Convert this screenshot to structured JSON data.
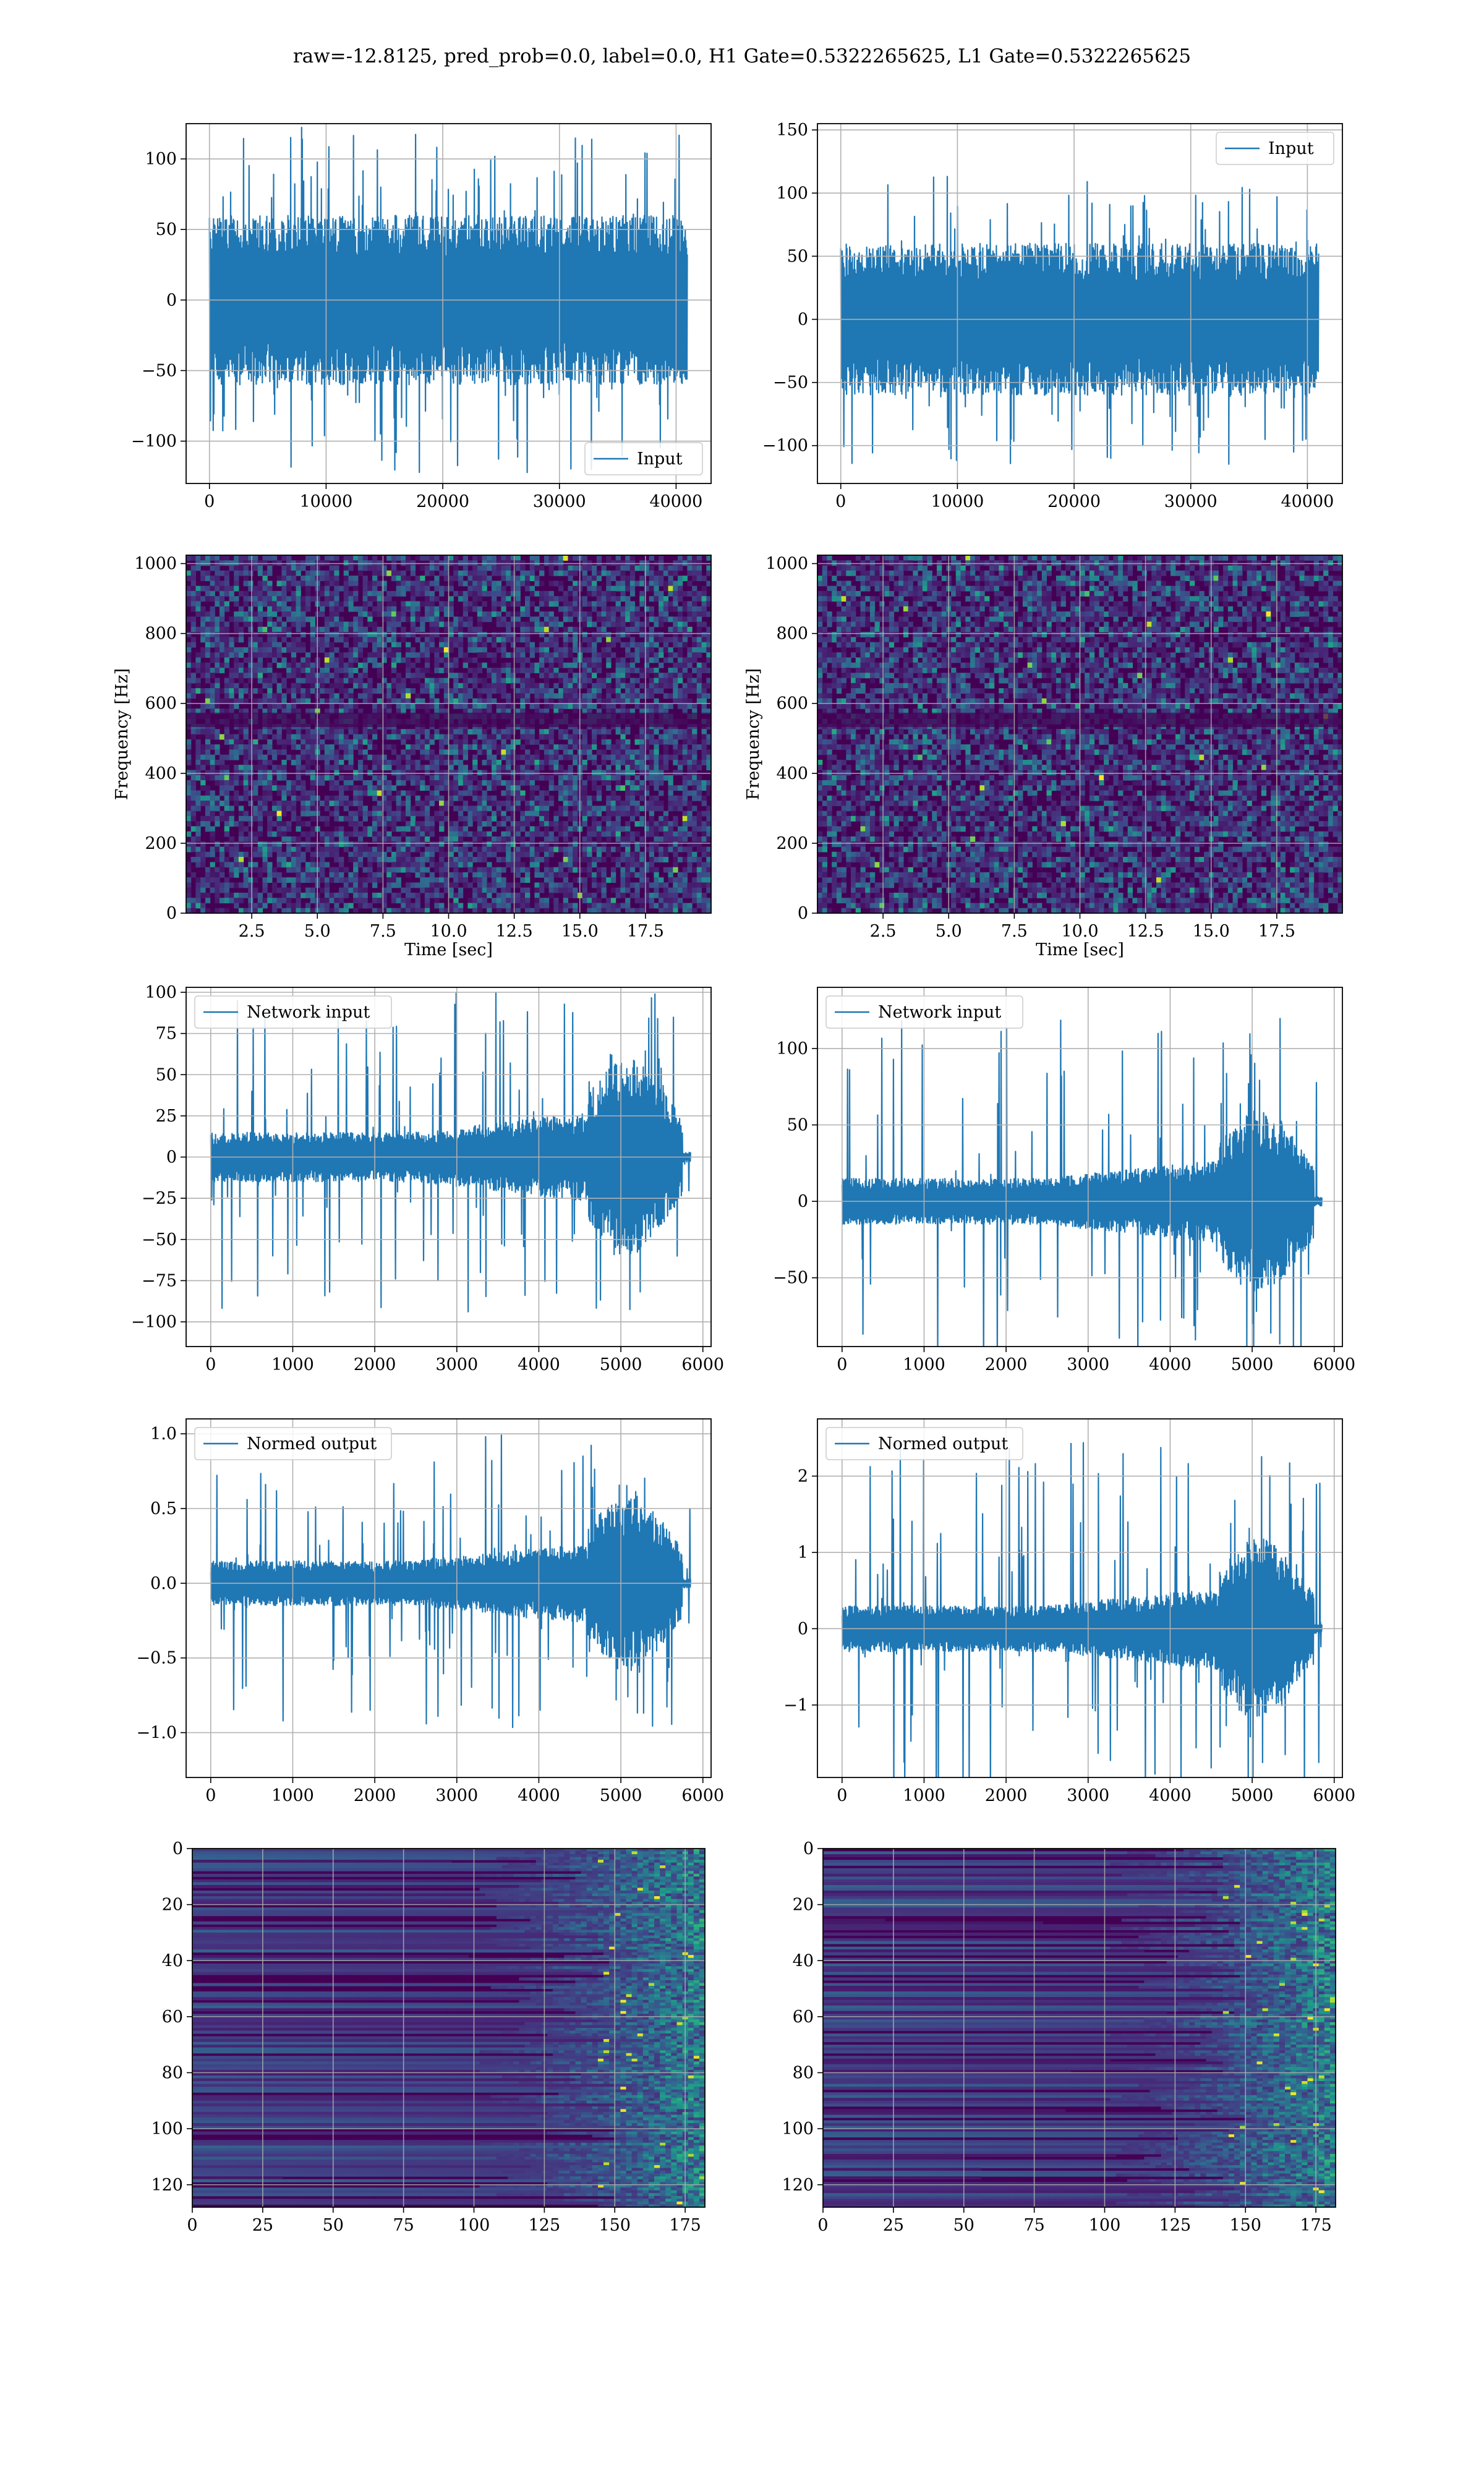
{
  "suptitle": "raw=-12.8125, pred_prob=0.0, label=0.0, H1 Gate=0.5322265625, L1 Gate=0.5322265625",
  "colors": {
    "series": "#1f77b4",
    "grid": "#b0b0b0",
    "viridis": [
      "#440154",
      "#482878",
      "#3e4989",
      "#31688e",
      "#26828e",
      "#1f9e89",
      "#35b779",
      "#6ece58",
      "#b5de2b",
      "#fde725"
    ]
  },
  "chart_data": [
    {
      "type": "line",
      "panel": "row1-left",
      "legend": "lower-right",
      "series": [
        {
          "name": "Input"
        }
      ],
      "x_range": [
        0,
        40960
      ],
      "envelope_core": 60,
      "envelope_spike": 125,
      "profile": "stationary",
      "xlim": [
        -2000,
        43000
      ],
      "ylim": [
        -130,
        125
      ],
      "xticks": [
        "0",
        "10000",
        "20000",
        "30000",
        "40000"
      ],
      "yticks": [
        "−100",
        "−50",
        "0",
        "50",
        "100"
      ],
      "xlabel": "",
      "ylabel": "",
      "grid": true
    },
    {
      "type": "line",
      "panel": "row1-right",
      "legend": "upper-right",
      "series": [
        {
          "name": "Input"
        }
      ],
      "x_range": [
        0,
        40960
      ],
      "envelope_core": 60,
      "envelope_spike": 115,
      "profile": "stationary",
      "xlim": [
        -2000,
        43000
      ],
      "ylim": [
        -130,
        155
      ],
      "xticks": [
        "0",
        "10000",
        "20000",
        "30000",
        "40000"
      ],
      "yticks": [
        "−100",
        "−50",
        "0",
        "50",
        "100",
        "150"
      ],
      "xlabel": "",
      "ylabel": "",
      "grid": true
    },
    {
      "type": "heatmap",
      "panel": "row2-left",
      "xlim": [
        0,
        20
      ],
      "ylim": [
        0,
        1024
      ],
      "xticks": [
        "2.5",
        "5.0",
        "7.5",
        "10.0",
        "12.5",
        "15.0",
        "17.5"
      ],
      "yticks": [
        "0",
        "200",
        "400",
        "600",
        "800",
        "1000"
      ],
      "xlabel": "Time [sec]",
      "ylabel": "Frequency [Hz]",
      "grid": true,
      "colormap": "viridis",
      "profile": "noise"
    },
    {
      "type": "heatmap",
      "panel": "row2-right",
      "xlim": [
        0,
        20
      ],
      "ylim": [
        0,
        1024
      ],
      "xticks": [
        "2.5",
        "5.0",
        "7.5",
        "10.0",
        "12.5",
        "15.0",
        "17.5"
      ],
      "yticks": [
        "0",
        "200",
        "400",
        "600",
        "800",
        "1000"
      ],
      "xlabel": "Time [sec]",
      "ylabel": "Frequency [Hz]",
      "grid": true,
      "colormap": "viridis",
      "profile": "noise"
    },
    {
      "type": "line",
      "panel": "row3-left",
      "legend": "upper-left",
      "series": [
        {
          "name": "Network input"
        }
      ],
      "x_range": [
        0,
        5850
      ],
      "envelope_core": 15,
      "envelope_spike": 100,
      "profile": "chirp",
      "burst_start": 4600,
      "burst_end": 5750,
      "xlim": [
        -300,
        6100
      ],
      "ylim": [
        -115,
        103
      ],
      "xticks": [
        "0",
        "1000",
        "2000",
        "3000",
        "4000",
        "5000",
        "6000"
      ],
      "yticks": [
        "−100",
        "−75",
        "−50",
        "−25",
        "0",
        "25",
        "50",
        "75",
        "100"
      ],
      "xlabel": "",
      "ylabel": "",
      "grid": true
    },
    {
      "type": "line",
      "panel": "row3-right",
      "legend": "upper-left",
      "series": [
        {
          "name": "Network input"
        }
      ],
      "x_range": [
        0,
        5850
      ],
      "envelope_core": 15,
      "envelope_spike": 120,
      "profile": "chirp",
      "burst_start": 4600,
      "burst_end": 5750,
      "xlim": [
        -300,
        6100
      ],
      "ylim": [
        -95,
        140
      ],
      "xticks": [
        "0",
        "1000",
        "2000",
        "3000",
        "4000",
        "5000",
        "6000"
      ],
      "yticks": [
        "−50",
        "0",
        "50",
        "100"
      ],
      "xlabel": "",
      "ylabel": "",
      "grid": true
    },
    {
      "type": "line",
      "panel": "row4-left",
      "legend": "upper-left",
      "series": [
        {
          "name": "Normed output"
        }
      ],
      "x_range": [
        0,
        5850
      ],
      "envelope_core": 0.15,
      "envelope_spike": 1.0,
      "profile": "chirp",
      "burst_start": 4600,
      "burst_end": 5750,
      "xlim": [
        -300,
        6100
      ],
      "ylim": [
        -1.3,
        1.1
      ],
      "xticks": [
        "0",
        "1000",
        "2000",
        "3000",
        "4000",
        "5000",
        "6000"
      ],
      "yticks": [
        "−1.0",
        "−0.5",
        "0.0",
        "0.5",
        "1.0"
      ],
      "xlabel": "",
      "ylabel": "",
      "grid": true
    },
    {
      "type": "line",
      "panel": "row4-right",
      "legend": "upper-left",
      "series": [
        {
          "name": "Normed output"
        }
      ],
      "x_range": [
        0,
        5850
      ],
      "envelope_core": 0.3,
      "envelope_spike": 2.5,
      "profile": "chirp",
      "burst_start": 4600,
      "burst_end": 5750,
      "xlim": [
        -300,
        6100
      ],
      "ylim": [
        -1.95,
        2.75
      ],
      "xticks": [
        "0",
        "1000",
        "2000",
        "3000",
        "4000",
        "5000",
        "6000"
      ],
      "yticks": [
        "−1",
        "0",
        "1",
        "2"
      ],
      "xlabel": "",
      "ylabel": "",
      "grid": true
    },
    {
      "type": "heatmap",
      "panel": "row5-left",
      "xlim": [
        0,
        182
      ],
      "ylim": [
        128,
        0
      ],
      "xticks": [
        "0",
        "25",
        "50",
        "75",
        "100",
        "125",
        "150",
        "175"
      ],
      "yticks": [
        "0",
        "20",
        "40",
        "60",
        "80",
        "100",
        "120"
      ],
      "xlabel": "",
      "ylabel": "",
      "grid": true,
      "colormap": "viridis",
      "profile": "features"
    },
    {
      "type": "heatmap",
      "panel": "row5-right",
      "xlim": [
        0,
        182
      ],
      "ylim": [
        128,
        0
      ],
      "xticks": [
        "0",
        "25",
        "50",
        "75",
        "100",
        "125",
        "150",
        "175"
      ],
      "yticks": [
        "0",
        "20",
        "40",
        "60",
        "80",
        "100",
        "120"
      ],
      "xlabel": "",
      "ylabel": "",
      "grid": true,
      "colormap": "viridis",
      "profile": "features"
    }
  ]
}
